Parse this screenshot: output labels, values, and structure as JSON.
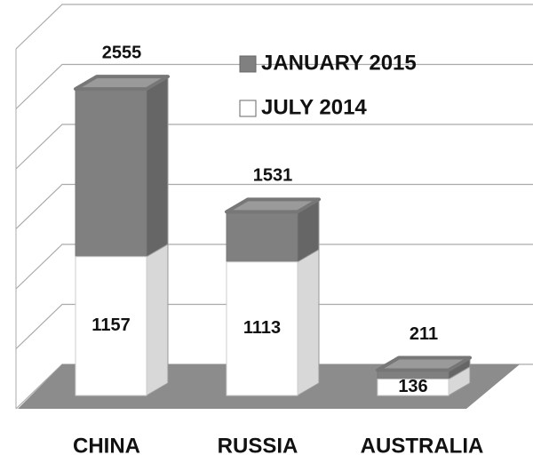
{
  "chart_data": {
    "type": "bar",
    "categories": [
      "CHINA",
      "RUSSIA",
      "AUSTRALIA"
    ],
    "series": [
      {
        "name": "JANUARY 2015",
        "color": "#808080",
        "values": [
          2555,
          1531,
          211
        ]
      },
      {
        "name": "JULY 2014",
        "color": "#ffffff",
        "values": [
          1157,
          1113,
          136
        ]
      }
    ],
    "ylim": [
      0,
      3000
    ],
    "yticks": [
      0,
      500,
      1000,
      1500,
      2000,
      2500,
      3000
    ],
    "grid": true
  }
}
